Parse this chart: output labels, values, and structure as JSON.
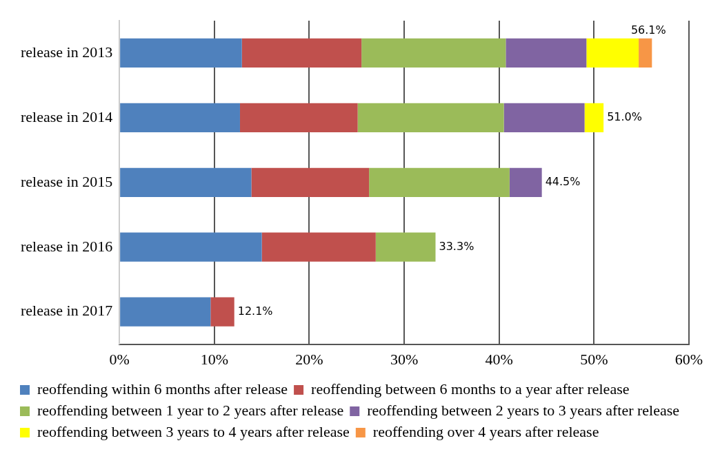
{
  "chart_data": {
    "type": "bar",
    "orientation": "horizontal",
    "stacked": true,
    "categories": [
      "release in 2013",
      "release in 2014",
      "release in 2015",
      "release in 2016",
      "release in 2017"
    ],
    "series": [
      {
        "name": "reoffending within 6 months after release",
        "color": "#4f81bd",
        "values": [
          12.9,
          12.7,
          13.9,
          15.0,
          9.6
        ]
      },
      {
        "name": "reoffending between 6 months to a year after release",
        "color": "#c0504d",
        "values": [
          12.6,
          12.4,
          12.4,
          12.0,
          2.5
        ]
      },
      {
        "name": "reoffending between 1 year to 2 years after release",
        "color": "#9bbb59",
        "values": [
          15.2,
          15.4,
          14.8,
          6.3,
          null
        ]
      },
      {
        "name": "reoffending between 2 years to 3 years after release",
        "color": "#8064a2",
        "values": [
          8.5,
          8.5,
          3.4,
          null,
          null
        ]
      },
      {
        "name": "reoffending between 3 years to 4 years after release",
        "color": "#ffff00",
        "values": [
          5.5,
          2.0,
          null,
          null,
          null
        ]
      },
      {
        "name": "reoffending over 4 years after release",
        "color": "#f79646",
        "values": [
          1.4,
          null,
          null,
          null,
          null
        ]
      }
    ],
    "totals": [
      "56.1%",
      "51.0%",
      "44.5%",
      "33.3%",
      "12.1%"
    ],
    "xlim": [
      0,
      60
    ],
    "xticks": [
      {
        "value": 0,
        "label": "0%"
      },
      {
        "value": 10,
        "label": "10%"
      },
      {
        "value": 20,
        "label": "20%"
      },
      {
        "value": 30,
        "label": "30%"
      },
      {
        "value": 40,
        "label": "40%"
      },
      {
        "value": 50,
        "label": "50%"
      },
      {
        "value": 60,
        "label": "60%"
      }
    ],
    "grid": "x",
    "legend": "bottom"
  }
}
